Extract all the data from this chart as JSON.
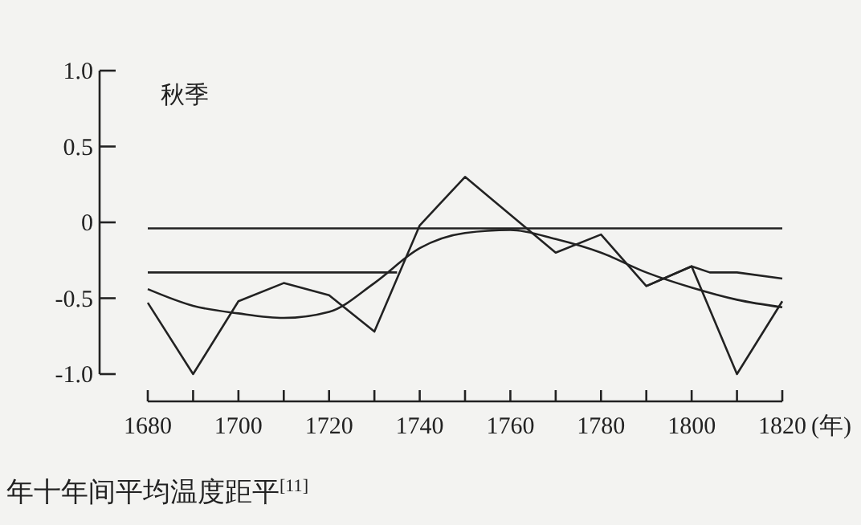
{
  "chart_data": {
    "type": "line",
    "xlabel": "(年)",
    "annotations": [
      "秋季",
      "年十年间平均温度距平$^{[11]}$"
    ],
    "xlim": [
      1680,
      1820
    ],
    "xticks": [
      {
        "value": 1680,
        "label": "1680"
      },
      {
        "value": 1690,
        "label": null
      },
      {
        "value": 1700,
        "label": "1700"
      },
      {
        "value": 1710,
        "label": null
      },
      {
        "value": 1720,
        "label": "1720"
      },
      {
        "value": 1730,
        "label": null
      },
      {
        "value": 1740,
        "label": "1740"
      },
      {
        "value": 1750,
        "label": null
      },
      {
        "value": 1760,
        "label": "1760"
      },
      {
        "value": 1770,
        "label": null
      },
      {
        "value": 1780,
        "label": "1780"
      },
      {
        "value": 1790,
        "label": null
      },
      {
        "value": 1800,
        "label": "1800"
      },
      {
        "value": 1810,
        "label": null
      },
      {
        "value": 1820,
        "label": "1820"
      }
    ],
    "ylim": [
      -1.0,
      1.0
    ],
    "yticks": [
      {
        "value": 1.0,
        "label": "1.0"
      },
      {
        "value": 0.5,
        "label": "0.5"
      },
      {
        "value": 0,
        "label": "0"
      },
      {
        "value": -0.5,
        "label": "-0.5"
      },
      {
        "value": -1.0,
        "label": "-1.0"
      }
    ],
    "grid": false,
    "marker": "none",
    "line_style": "solid",
    "series": [
      {
        "color": "#222222",
        "x": [
          1680,
          1690,
          1700,
          1710,
          1720,
          1730,
          1740,
          1750,
          1760,
          1770,
          1780,
          1790,
          1800,
          1810,
          1820
        ],
        "values": [
          -0.53,
          -1.0,
          -0.52,
          -0.4,
          -0.48,
          -0.72,
          -0.02,
          0.3,
          0.05,
          -0.2,
          -0.08,
          -0.42,
          -0.29,
          -1.0,
          -0.52
        ]
      },
      {
        "color": "#222222",
        "x": [
          1680,
          1690,
          1700,
          1710,
          1720,
          1730,
          1740,
          1750,
          1760,
          1770,
          1780,
          1790,
          1800,
          1810,
          1820
        ],
        "values": [
          -0.44,
          -0.55,
          -0.6,
          -0.63,
          -0.59,
          -0.4,
          -0.17,
          -0.07,
          -0.05,
          -0.11,
          -0.2,
          -0.33,
          -0.43,
          -0.51,
          -0.56
        ]
      },
      {
        "color": "#222222",
        "x": [
          1790,
          1800,
          1804,
          1810,
          1820
        ],
        "values": [
          -0.42,
          -0.29,
          -0.33,
          -0.33,
          -0.37
        ]
      },
      {
        "color": "#222222",
        "x": [
          1680,
          1820
        ],
        "values": [
          -0.04,
          -0.04
        ]
      },
      {
        "color": "#222222",
        "x": [
          1680,
          1735
        ],
        "values": [
          -0.33,
          -0.33
        ]
      }
    ]
  }
}
